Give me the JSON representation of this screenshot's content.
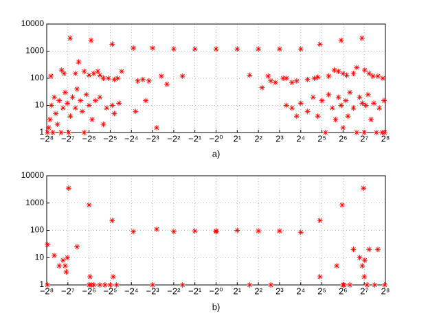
{
  "chart_data": [
    {
      "type": "scatter",
      "caption": "a)",
      "color": "#ff0000",
      "grid": true,
      "xscale": "symlog2",
      "yscale": "log",
      "xlim": [
        -256,
        256
      ],
      "ylim": [
        1,
        10000
      ],
      "xticks": [
        {
          "value": -256,
          "label": "−2⁸"
        },
        {
          "value": -128,
          "label": "−2⁷"
        },
        {
          "value": -64,
          "label": "−2⁶"
        },
        {
          "value": -32,
          "label": "−2⁵"
        },
        {
          "value": -16,
          "label": "−2⁴"
        },
        {
          "value": -8,
          "label": "−2³"
        },
        {
          "value": -4,
          "label": "−2²"
        },
        {
          "value": -2,
          "label": "−2¹"
        },
        {
          "value": -1,
          "label": "−2⁰"
        },
        {
          "value": 2,
          "label": "2¹"
        },
        {
          "value": 4,
          "label": "2²"
        },
        {
          "value": 8,
          "label": "2³"
        },
        {
          "value": 16,
          "label": "2⁴"
        },
        {
          "value": 32,
          "label": "2⁵"
        },
        {
          "value": 64,
          "label": "2⁶"
        },
        {
          "value": 128,
          "label": "2⁷"
        },
        {
          "value": 256,
          "label": "2⁸"
        }
      ],
      "yticks": [
        1,
        10,
        100,
        1000,
        10000
      ],
      "x": [
        -119,
        -60,
        -30,
        -15,
        -8,
        -4,
        -2,
        -1,
        2,
        4,
        8,
        16,
        30,
        60,
        119,
        -223,
        -157,
        -145,
        -100,
        -90,
        -75,
        -64,
        -55,
        -48,
        -45,
        -40,
        -34,
        -28,
        -25,
        -22,
        -13,
        -11,
        -9,
        -6,
        -5,
        -3,
        3,
        4.5,
        5.5,
        6,
        7,
        9,
        10,
        12,
        14,
        20,
        25,
        28,
        40,
        48,
        55,
        64,
        72,
        90,
        100,
        130,
        150,
        170,
        200,
        235,
        -250,
        -240,
        -230,
        -220,
        -210,
        -200,
        -190,
        -180,
        -170,
        -160,
        -150,
        -140,
        -130,
        -125,
        -118,
        -110,
        -100,
        -95,
        -85,
        -80,
        -75,
        -70,
        -64,
        -58,
        -52,
        -45,
        -40,
        -36,
        -30,
        -28,
        -24,
        -14,
        -10,
        -7,
        10,
        12,
        14,
        16,
        20,
        24,
        28,
        32,
        36,
        40,
        45,
        50,
        55,
        60,
        64,
        70,
        75,
        80,
        90,
        100,
        110,
        120,
        128,
        135,
        145,
        160,
        175,
        190,
        210,
        230,
        245,
        250
      ],
      "values": [
        3000,
        2500,
        1800,
        1300,
        1300,
        1200,
        1200,
        1200,
        1200,
        1200,
        1200,
        1200,
        1800,
        2500,
        3000,
        120,
        200,
        150,
        150,
        400,
        180,
        130,
        150,
        180,
        130,
        100,
        100,
        90,
        100,
        180,
        80,
        90,
        80,
        120,
        60,
        120,
        130,
        45,
        120,
        80,
        70,
        100,
        100,
        70,
        80,
        90,
        100,
        110,
        120,
        200,
        180,
        150,
        130,
        150,
        250,
        200,
        150,
        120,
        120,
        100,
        1,
        1.5,
        3,
        10,
        1,
        20,
        5,
        2,
        15,
        1,
        8,
        30,
        12,
        1,
        4,
        20,
        8,
        40,
        15,
        6,
        1,
        25,
        10,
        3,
        15,
        20,
        2,
        8,
        10,
        5,
        12,
        6,
        15,
        1.5,
        10,
        8,
        4,
        12,
        6,
        20,
        4,
        15,
        1,
        25,
        8,
        3,
        20,
        10,
        1.5,
        15,
        4,
        30,
        8,
        1,
        20,
        12,
        1,
        10,
        25,
        3,
        12,
        1,
        8,
        1,
        15,
        1
      ]
    },
    {
      "type": "scatter",
      "caption": "b)",
      "color": "#ff0000",
      "grid": true,
      "xscale": "symlog2",
      "yscale": "log",
      "xlim": [
        -256,
        256
      ],
      "ylim": [
        1,
        10000
      ],
      "xticks": [
        {
          "value": -256,
          "label": "−2⁸"
        },
        {
          "value": -128,
          "label": "−2⁷"
        },
        {
          "value": -64,
          "label": "−2⁶"
        },
        {
          "value": -32,
          "label": "−2⁵"
        },
        {
          "value": -16,
          "label": "−2⁴"
        },
        {
          "value": -8,
          "label": "−2³"
        },
        {
          "value": -4,
          "label": "−2²"
        },
        {
          "value": -2,
          "label": "−2¹"
        },
        {
          "value": -1,
          "label": "−2⁰"
        },
        {
          "value": 2,
          "label": "2¹"
        },
        {
          "value": 4,
          "label": "2²"
        },
        {
          "value": 8,
          "label": "2³"
        },
        {
          "value": 16,
          "label": "2⁴"
        },
        {
          "value": 32,
          "label": "2⁵"
        },
        {
          "value": 64,
          "label": "2⁶"
        },
        {
          "value": 128,
          "label": "2⁷"
        },
        {
          "value": 256,
          "label": "2⁸"
        }
      ],
      "yticks": [
        1,
        10,
        100,
        1000,
        10000
      ],
      "x": [
        -250,
        -250,
        -200,
        -170,
        -150,
        -140,
        -135,
        -130,
        -125,
        -95,
        -64,
        -64,
        -62,
        -60,
        -55,
        -45,
        -38,
        -32,
        -30,
        -29,
        -26,
        -15,
        -8,
        -7,
        -4,
        -3,
        -2,
        -1,
        -1,
        2,
        3,
        4,
        6,
        8,
        16,
        30,
        30,
        52,
        62,
        64,
        66,
        80,
        90,
        110,
        120,
        125,
        128,
        130,
        140,
        150,
        180,
        200,
        250
      ],
      "values": [
        1,
        30,
        12,
        5,
        8,
        5,
        3,
        10,
        3500,
        25,
        850,
        1,
        2,
        1,
        1,
        1,
        1,
        1,
        230,
        2,
        1,
        90,
        1,
        110,
        90,
        1,
        95,
        90,
        95,
        100,
        1,
        95,
        1,
        95,
        85,
        230,
        2,
        5,
        850,
        1,
        1,
        1,
        20,
        10,
        5,
        3500,
        2,
        8,
        1,
        20,
        1,
        20,
        1
      ]
    }
  ]
}
